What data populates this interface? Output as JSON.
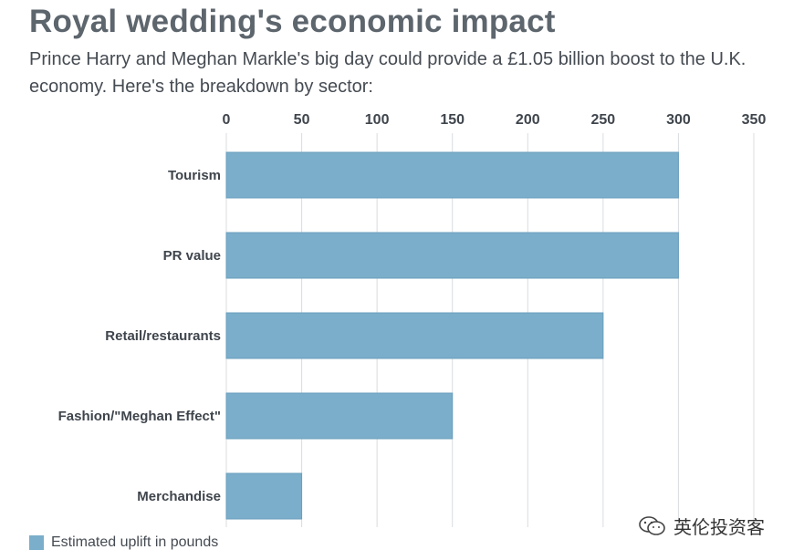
{
  "title": "Royal wedding's economic impact",
  "subtitle": "Prince Harry and Meghan Markle's big day could provide a £1.05 billion boost to the U.K. economy. Here's the breakdown by sector:",
  "legend": {
    "label": "Estimated uplift in pounds",
    "color": "#7aaeca"
  },
  "watermark": {
    "icon": "wechat-icon",
    "text": "英伦投资客"
  },
  "colors": {
    "bar": "#7aaeca",
    "bar_stroke": "#6a9fbd",
    "grid": "#d9dde1",
    "text": "#3f454c"
  },
  "chart_data": {
    "type": "bar",
    "orientation": "horizontal",
    "categories": [
      "Tourism",
      "PR value",
      "Retail/restaurants",
      "Fashion/\"Meghan Effect\"",
      "Merchandise"
    ],
    "series": [
      {
        "name": "Estimated uplift in pounds",
        "values": [
          300,
          300,
          250,
          150,
          50
        ]
      }
    ],
    "xlim": [
      0,
      350
    ],
    "xticks": [
      0,
      50,
      100,
      150,
      200,
      250,
      300,
      350
    ],
    "x_axis_position": "top",
    "grid": true,
    "legend_position": "bottom-left"
  }
}
